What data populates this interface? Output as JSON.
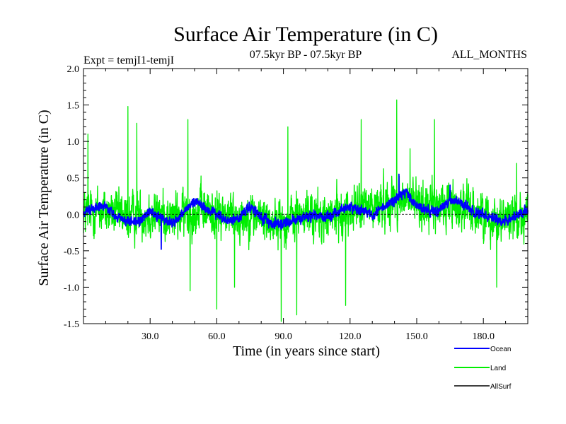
{
  "chart_data": {
    "type": "line",
    "title": "Surface Air Temperature (in C)",
    "subtitle_left": "Expt = temjI1-temjI",
    "subtitle_center": "07.5kyr BP - 07.5kyr BP",
    "subtitle_right": "ALL_MONTHS",
    "xlabel": "Time (in years since start)",
    "ylabel": "Surface Air Temperature (in C)",
    "xlim": [
      0,
      200
    ],
    "ylim": [
      -1.5,
      2.0
    ],
    "x_ticks": [
      30,
      60,
      90,
      120,
      150,
      180
    ],
    "x_tick_labels": [
      "30.0",
      "60.0",
      "90.0",
      "120.0",
      "150.0",
      "180.0"
    ],
    "y_ticks": [
      -1.5,
      -1.0,
      -0.5,
      0.0,
      0.5,
      1.0,
      1.5,
      2.0
    ],
    "y_tick_labels": [
      "-1.5",
      "-1.0",
      "-0.5",
      "0.0",
      "0.5",
      "1.0",
      "1.5",
      "2.0"
    ],
    "zero_line": true,
    "samples_per_year": 12,
    "series": [
      {
        "name": "Land",
        "color": "#00ee00",
        "anchors_x": [
          0,
          5,
          10,
          15,
          20,
          25,
          30,
          35,
          40,
          45,
          50,
          55,
          60,
          65,
          70,
          75,
          80,
          85,
          90,
          95,
          100,
          105,
          110,
          115,
          120,
          125,
          130,
          135,
          140,
          145,
          150,
          155,
          160,
          165,
          170,
          175,
          180,
          185,
          190,
          195,
          200
        ],
        "anchors_y": [
          0.0,
          0.05,
          0.05,
          0.0,
          -0.05,
          0.0,
          0.0,
          0.0,
          -0.05,
          0.0,
          0.05,
          0.05,
          0.0,
          0.0,
          -0.05,
          0.0,
          -0.05,
          -0.1,
          -0.1,
          -0.05,
          0.0,
          -0.05,
          -0.05,
          0.0,
          0.05,
          0.1,
          0.1,
          0.15,
          0.2,
          0.2,
          0.15,
          0.1,
          0.1,
          0.15,
          0.1,
          0.05,
          0.0,
          -0.05,
          -0.05,
          0.0,
          0.0
        ],
        "noise_amplitude": 0.42,
        "extremes": [
          [
            2,
            1.1
          ],
          [
            20,
            1.48
          ],
          [
            24,
            1.25
          ],
          [
            47,
            1.3
          ],
          [
            48,
            -1.05
          ],
          [
            60,
            -1.3
          ],
          [
            68,
            -1.0
          ],
          [
            89,
            -1.47
          ],
          [
            92,
            1.2
          ],
          [
            96,
            -1.38
          ],
          [
            118,
            -1.25
          ],
          [
            125,
            1.3
          ],
          [
            141,
            1.57
          ],
          [
            147,
            0.9
          ],
          [
            158,
            1.3
          ],
          [
            186,
            -1.0
          ],
          [
            195,
            0.7
          ]
        ],
        "display_min": -1.5,
        "display_max": 1.58
      },
      {
        "name": "Ocean",
        "color": "#0000ff",
        "anchors_x": [
          0,
          5,
          10,
          15,
          20,
          25,
          30,
          35,
          40,
          45,
          50,
          55,
          60,
          65,
          70,
          75,
          80,
          85,
          90,
          95,
          100,
          105,
          110,
          115,
          120,
          125,
          130,
          135,
          140,
          145,
          150,
          155,
          160,
          165,
          170,
          175,
          180,
          185,
          190,
          195,
          200
        ],
        "anchors_y": [
          0.0,
          0.12,
          0.1,
          -0.05,
          -0.1,
          -0.1,
          0.05,
          -0.05,
          -0.12,
          0.0,
          0.2,
          0.08,
          0.0,
          -0.1,
          -0.05,
          0.1,
          -0.05,
          -0.12,
          -0.12,
          -0.08,
          -0.05,
          0.0,
          -0.05,
          0.05,
          0.1,
          0.05,
          0.0,
          0.1,
          0.2,
          0.3,
          0.1,
          0.05,
          0.05,
          0.2,
          0.15,
          0.05,
          0.0,
          -0.05,
          -0.1,
          0.0,
          0.05
        ],
        "noise_amplitude": 0.09,
        "extremes": [
          [
            142,
            0.55
          ],
          [
            165,
            0.4
          ],
          [
            35,
            -0.48
          ]
        ],
        "display_min": -0.5,
        "display_max": 0.55
      }
    ],
    "legend": [
      {
        "label": "Ocean",
        "color": "#0000ff"
      },
      {
        "label": "Land",
        "color": "#00ee00"
      },
      {
        "label": "AllSurf",
        "color": "#000000"
      }
    ]
  }
}
